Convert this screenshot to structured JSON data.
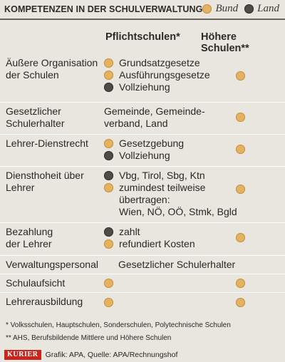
{
  "title": "KOMPETENZEN IN DER SCHULVERWALTUNG",
  "legend": [
    {
      "label": "Bund",
      "color": "#e4b262"
    },
    {
      "label": "Land",
      "color": "#4f4b48"
    }
  ],
  "columns": {
    "pflichtschulen": "Pflichtschulen*",
    "hoehere": "Höhere Schulen**"
  },
  "rows": [
    {
      "label": "Äußere Organisation der Schulen",
      "items": [
        {
          "type": "bund",
          "text": "Grundsatzgesetze"
        },
        {
          "type": "bund",
          "text": "Ausführungsgesetze"
        },
        {
          "type": "land",
          "text": "Vollziehung"
        }
      ],
      "hoehere": "bund"
    },
    {
      "label": "Gesetzlicher Schulerhalter",
      "plain": "Gemeinde, Gemeinde-\nverband, Land",
      "hoehere": "bund"
    },
    {
      "label": "Lehrer-Dienstrecht",
      "items": [
        {
          "type": "bund",
          "text": "Gesetzgebung"
        },
        {
          "type": "land",
          "text": "Vollziehung"
        }
      ],
      "hoehere": "bund"
    },
    {
      "label": "Diensthoheit über Lehrer",
      "items": [
        {
          "type": "land",
          "text": "Vbg, Tirol, Sbg, Ktn"
        },
        {
          "type": "bund",
          "text": "zumindest teilweise\nübertragen:\nWien, NÖ, OÖ, Stmk, Bgld"
        }
      ],
      "hoehere": "bund"
    },
    {
      "label": "Bezahlung der Lehrer",
      "items": [
        {
          "type": "land",
          "text": "zahlt"
        },
        {
          "type": "bund",
          "text": "refundiert Kosten"
        }
      ],
      "hoehere": "bund"
    },
    {
      "label": "Verwaltungspersonal",
      "plain": "Gesetzlicher Schulerhalter",
      "hoehere": ""
    },
    {
      "label": "Schulaufsicht",
      "items": [
        {
          "type": "bund",
          "text": ""
        }
      ],
      "hoehere": "bund"
    },
    {
      "label": "Lehrerausbildung",
      "items": [
        {
          "type": "bund",
          "text": ""
        }
      ],
      "hoehere": "bund"
    }
  ],
  "footnotes": [
    "* Volksschulen, Hauptschulen, Sonderschulen, Polytechnische Schulen",
    "** AHS, Berufsbildende Mittlere und Höhere Schulen"
  ],
  "footer": {
    "logo": "KURIER",
    "credit": "Grafik: APA, Quelle: APA/Rechnungshof"
  }
}
